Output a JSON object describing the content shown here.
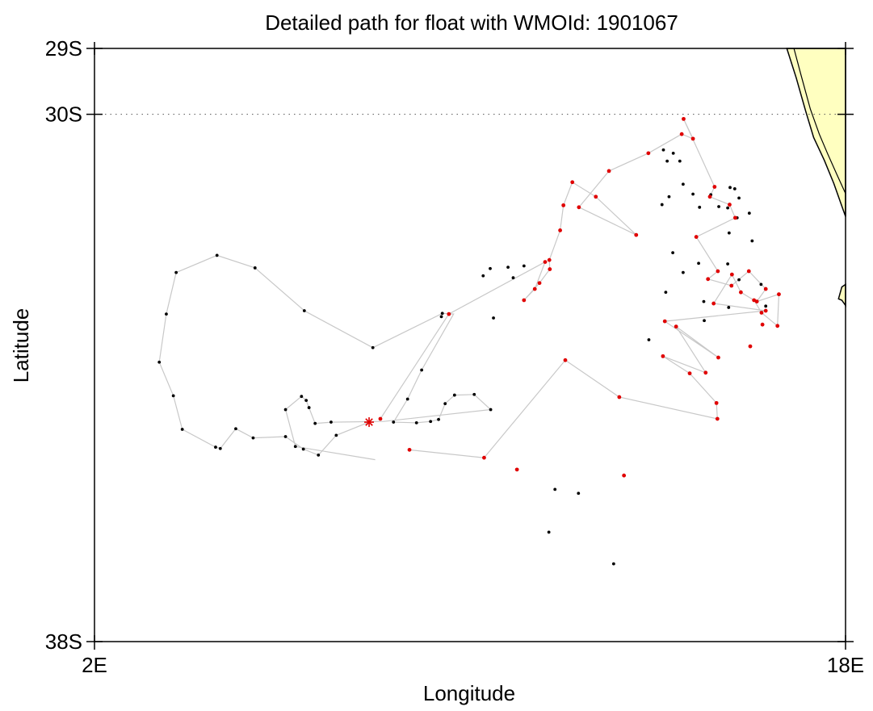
{
  "chart_data": {
    "type": "scatter",
    "title": "Detailed path for float with WMOId: 1901067",
    "xlabel": "Longitude",
    "ylabel": "Latitude",
    "xlim": [
      2,
      18
    ],
    "ylim": [
      -38,
      -29
    ],
    "x_ticks": [
      {
        "value": 2,
        "label": "2E"
      },
      {
        "value": 18,
        "label": "18E"
      }
    ],
    "y_ticks": [
      {
        "value": -29,
        "label": "29S"
      },
      {
        "value": -30,
        "label": "30S"
      },
      {
        "value": -38,
        "label": "38S"
      }
    ],
    "reference_line": {
      "lat": -30,
      "style": "dotted"
    },
    "colors": {
      "path": "#c8c8c8",
      "black_point": "#000000",
      "red_point": "#e00000",
      "land": "#ffffc0",
      "coast": "#000000"
    },
    "start_marker": {
      "x": 7.85,
      "y": -34.67,
      "symbol": "asterisk",
      "color": "#e00000"
    },
    "path": [
      [
        7.85,
        -34.67
      ],
      [
        7.15,
        -34.87
      ],
      [
        6.77,
        -35.17
      ],
      [
        6.45,
        -35.08
      ],
      [
        6.07,
        -34.89
      ],
      [
        5.38,
        -34.91
      ],
      [
        5.01,
        -34.77
      ],
      [
        4.68,
        -35.07
      ],
      [
        4.58,
        -35.05
      ],
      [
        3.87,
        -34.78
      ],
      [
        3.68,
        -34.27
      ],
      [
        3.38,
        -33.76
      ],
      [
        3.53,
        -33.03
      ],
      [
        3.74,
        -32.4
      ],
      [
        4.61,
        -32.14
      ],
      [
        5.42,
        -32.33
      ],
      [
        6.47,
        -32.98
      ],
      [
        7.93,
        -33.54
      ],
      [
        9.41,
        -33.02
      ],
      [
        9.65,
        -33.03
      ],
      [
        8.97,
        -33.88
      ],
      [
        8.67,
        -34.32
      ],
      [
        8.37,
        -34.67
      ],
      [
        8.86,
        -34.68
      ],
      [
        9.16,
        -34.66
      ],
      [
        9.33,
        -34.63
      ],
      [
        9.47,
        -34.39
      ],
      [
        9.67,
        -34.26
      ],
      [
        10.09,
        -34.25
      ],
      [
        10.44,
        -34.48
      ],
      [
        8.16,
        -34.66
      ],
      [
        7.04,
        -34.67
      ],
      [
        6.7,
        -34.69
      ],
      [
        6.57,
        -34.45
      ],
      [
        6.51,
        -34.34
      ],
      [
        6.41,
        -34.28
      ],
      [
        6.07,
        -34.48
      ],
      [
        6.28,
        -35.04
      ],
      [
        7.98,
        -35.24
      ]
    ],
    "red_path": [
      [
        8.09,
        -34.62
      ],
      [
        9.55,
        -33.03
      ],
      [
        11.6,
        -32.24
      ],
      [
        11.38,
        -32.65
      ],
      [
        11.15,
        -32.82
      ],
      [
        11.48,
        -32.56
      ],
      [
        11.7,
        -32.35
      ],
      [
        11.69,
        -32.21
      ],
      [
        11.92,
        -31.76
      ],
      [
        11.99,
        -31.38
      ],
      [
        12.18,
        -31.03
      ],
      [
        12.68,
        -31.25
      ],
      [
        13.54,
        -31.83
      ],
      [
        12.32,
        -31.41
      ],
      [
        12.96,
        -30.86
      ],
      [
        13.8,
        -30.59
      ],
      [
        14.51,
        -30.3
      ],
      [
        14.75,
        -30.37
      ],
      [
        14.55,
        -30.07
      ],
      [
        15.21,
        -31.1
      ],
      [
        15.11,
        -31.25
      ],
      [
        15.53,
        -31.37
      ],
      [
        15.65,
        -31.57
      ],
      [
        14.82,
        -31.86
      ],
      [
        15.28,
        -32.38
      ],
      [
        15.07,
        -32.5
      ],
      [
        15.57,
        -32.6
      ],
      [
        15.94,
        -32.38
      ],
      [
        16.3,
        -32.65
      ],
      [
        16.11,
        -32.84
      ],
      [
        16.58,
        -32.73
      ],
      [
        16.55,
        -33.21
      ],
      [
        16.21,
        -33.01
      ],
      [
        16.05,
        -32.82
      ],
      [
        15.77,
        -32.7
      ],
      [
        15.58,
        -32.43
      ],
      [
        15.19,
        -32.87
      ],
      [
        16.3,
        -32.98
      ],
      [
        14.15,
        -33.14
      ],
      [
        15.29,
        -33.69
      ],
      [
        14.39,
        -33.22
      ],
      [
        15.02,
        -33.92
      ],
      [
        14.11,
        -33.67
      ],
      [
        14.68,
        -33.93
      ],
      [
        15.25,
        -34.38
      ],
      [
        15.27,
        -34.62
      ],
      [
        13.18,
        -34.29
      ],
      [
        12.03,
        -33.73
      ],
      [
        10.3,
        -35.21
      ],
      [
        8.71,
        -35.09
      ]
    ],
    "black_markers": [
      [
        5.38,
        -34.91
      ],
      [
        5.01,
        -34.77
      ],
      [
        4.68,
        -35.07
      ],
      [
        4.58,
        -35.05
      ],
      [
        3.87,
        -34.78
      ],
      [
        3.68,
        -34.27
      ],
      [
        3.38,
        -33.76
      ],
      [
        3.53,
        -33.03
      ],
      [
        3.74,
        -32.4
      ],
      [
        4.61,
        -32.14
      ],
      [
        5.42,
        -32.33
      ],
      [
        6.47,
        -32.98
      ],
      [
        7.93,
        -33.54
      ],
      [
        9.41,
        -33.02
      ],
      [
        8.97,
        -33.88
      ],
      [
        8.67,
        -34.32
      ],
      [
        8.37,
        -34.67
      ],
      [
        8.86,
        -34.68
      ],
      [
        9.16,
        -34.66
      ],
      [
        9.33,
        -34.63
      ],
      [
        9.47,
        -34.39
      ],
      [
        9.67,
        -34.26
      ],
      [
        10.09,
        -34.25
      ],
      [
        10.44,
        -34.48
      ],
      [
        7.04,
        -34.67
      ],
      [
        6.7,
        -34.69
      ],
      [
        6.57,
        -34.45
      ],
      [
        6.51,
        -34.34
      ],
      [
        6.41,
        -34.28
      ],
      [
        6.07,
        -34.48
      ],
      [
        6.28,
        -35.04
      ],
      [
        7.15,
        -34.87
      ],
      [
        6.77,
        -35.17
      ],
      [
        6.45,
        -35.08
      ],
      [
        6.07,
        -34.89
      ],
      [
        11.81,
        -35.69
      ],
      [
        12.31,
        -35.75
      ],
      [
        11.68,
        -36.34
      ],
      [
        13.06,
        -36.82
      ],
      [
        14.12,
        -30.54
      ],
      [
        14.47,
        -30.71
      ],
      [
        14.75,
        -31.21
      ],
      [
        14.89,
        -31.41
      ],
      [
        15.13,
        -31.22
      ],
      [
        15.49,
        -31.42
      ],
      [
        15.3,
        -31.4
      ],
      [
        15.69,
        -31.57
      ],
      [
        16.01,
        -31.92
      ],
      [
        15.49,
        -32.27
      ],
      [
        14.87,
        -32.26
      ],
      [
        15.52,
        -31.8
      ],
      [
        15.54,
        -31.11
      ],
      [
        14.54,
        -31.06
      ],
      [
        14.2,
        -30.71
      ],
      [
        14.32,
        -32.1
      ],
      [
        14.24,
        -31.25
      ],
      [
        14.33,
        -30.59
      ],
      [
        13.81,
        -33.42
      ],
      [
        14.99,
        -33.13
      ],
      [
        14.17,
        -32.7
      ],
      [
        14.54,
        -32.4
      ],
      [
        15.73,
        -32.51
      ],
      [
        15.51,
        -32.93
      ],
      [
        10.5,
        -33.09
      ],
      [
        10.92,
        -32.48
      ],
      [
        11.15,
        -32.3
      ],
      [
        10.81,
        -32.32
      ],
      [
        10.43,
        -32.34
      ],
      [
        10.28,
        -32.45
      ],
      [
        9.39,
        -33.07
      ],
      [
        14.98,
        -32.84
      ],
      [
        14.09,
        -31.37
      ],
      [
        15.73,
        -31.27
      ],
      [
        15.64,
        -31.13
      ],
      [
        15.95,
        -31.5
      ],
      [
        16.2,
        -32.58
      ],
      [
        16.3,
        -32.91
      ]
    ],
    "red_markers": [
      [
        8.09,
        -34.62
      ],
      [
        9.55,
        -33.03
      ],
      [
        11.6,
        -32.24
      ],
      [
        11.38,
        -32.65
      ],
      [
        11.15,
        -32.82
      ],
      [
        11.48,
        -32.56
      ],
      [
        11.7,
        -32.35
      ],
      [
        11.69,
        -32.21
      ],
      [
        11.92,
        -31.76
      ],
      [
        11.99,
        -31.38
      ],
      [
        12.18,
        -31.03
      ],
      [
        12.68,
        -31.25
      ],
      [
        13.54,
        -31.83
      ],
      [
        12.32,
        -31.41
      ],
      [
        12.96,
        -30.86
      ],
      [
        13.8,
        -30.59
      ],
      [
        14.51,
        -30.3
      ],
      [
        14.75,
        -30.37
      ],
      [
        14.55,
        -30.07
      ],
      [
        15.21,
        -31.1
      ],
      [
        15.11,
        -31.25
      ],
      [
        15.53,
        -31.37
      ],
      [
        15.65,
        -31.57
      ],
      [
        14.82,
        -31.86
      ],
      [
        15.28,
        -32.38
      ],
      [
        15.07,
        -32.5
      ],
      [
        15.57,
        -32.6
      ],
      [
        15.94,
        -32.38
      ],
      [
        16.3,
        -32.65
      ],
      [
        16.11,
        -32.84
      ],
      [
        16.58,
        -32.73
      ],
      [
        16.55,
        -33.21
      ],
      [
        16.21,
        -33.01
      ],
      [
        16.05,
        -32.82
      ],
      [
        15.77,
        -32.7
      ],
      [
        15.58,
        -32.43
      ],
      [
        15.19,
        -32.87
      ],
      [
        16.3,
        -32.98
      ],
      [
        14.15,
        -33.14
      ],
      [
        15.29,
        -33.69
      ],
      [
        14.39,
        -33.22
      ],
      [
        15.02,
        -33.92
      ],
      [
        14.11,
        -33.67
      ],
      [
        14.68,
        -33.93
      ],
      [
        15.25,
        -34.38
      ],
      [
        15.27,
        -34.62
      ],
      [
        13.18,
        -34.29
      ],
      [
        12.03,
        -33.73
      ],
      [
        10.3,
        -35.21
      ],
      [
        8.71,
        -35.09
      ],
      [
        13.28,
        -35.48
      ],
      [
        11.0,
        -35.39
      ],
      [
        15.97,
        -33.52
      ],
      [
        16.23,
        -33.19
      ]
    ],
    "land_coast": [
      [
        16.75,
        -29.0
      ],
      [
        16.95,
        -29.45
      ],
      [
        17.15,
        -29.95
      ],
      [
        17.32,
        -30.35
      ],
      [
        17.55,
        -30.7
      ],
      [
        17.75,
        -31.05
      ],
      [
        17.85,
        -31.25
      ],
      [
        18.0,
        -31.55
      ],
      [
        18.0,
        -29.0
      ]
    ],
    "land_coast_inner": [
      [
        16.9,
        -29.0
      ],
      [
        17.05,
        -29.4
      ],
      [
        17.25,
        -29.92
      ],
      [
        17.44,
        -30.3
      ],
      [
        17.62,
        -30.6
      ],
      [
        17.82,
        -30.92
      ],
      [
        18.0,
        -31.2
      ]
    ],
    "land_island": [
      [
        17.85,
        -32.8
      ],
      [
        17.92,
        -32.62
      ],
      [
        18.0,
        -32.58
      ],
      [
        18.0,
        -32.9
      ],
      [
        17.92,
        -32.82
      ]
    ]
  }
}
